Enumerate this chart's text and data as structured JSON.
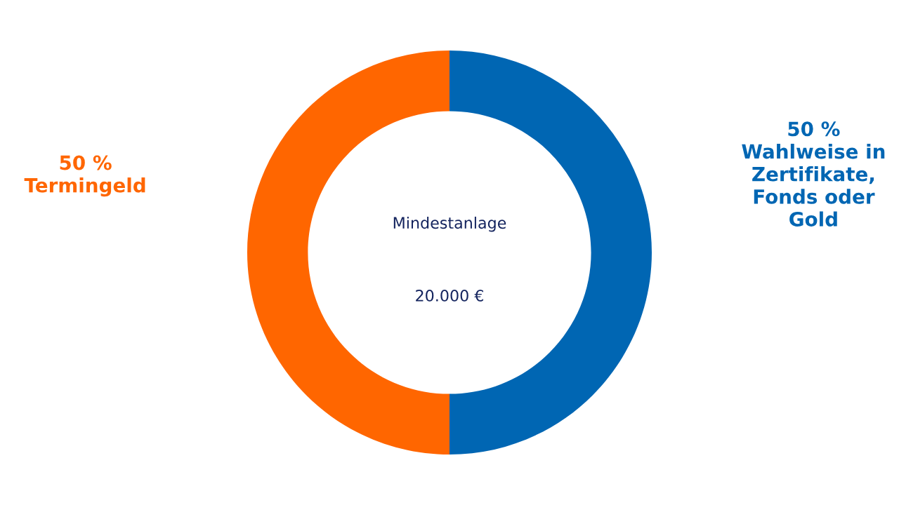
{
  "chart_data": {
    "type": "donut",
    "categories": [
      "Termingeld",
      "Wahlweise in\nZertifikate,\nFonds oder\nGold"
    ],
    "values": [
      50,
      50
    ],
    "colors": [
      "#ff6600",
      "#0066b3"
    ],
    "value_labels": [
      "50 %",
      "50 %"
    ],
    "annotations": [
      "Mindestanlage",
      "20.000 €"
    ]
  }
}
